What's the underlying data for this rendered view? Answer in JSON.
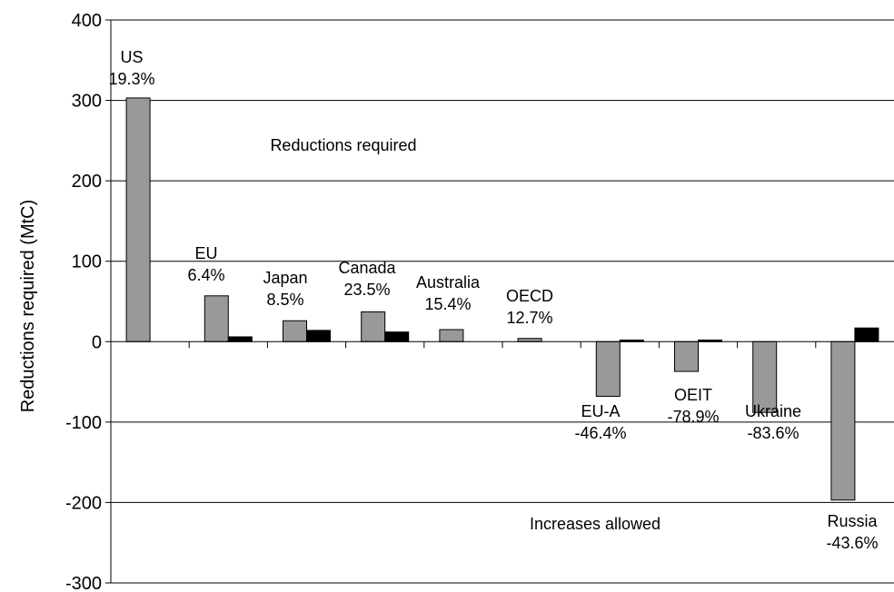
{
  "chart_data": {
    "type": "bar",
    "ylabel": "Reductions required (MtC)",
    "ylim": [
      -300,
      400
    ],
    "yticks": [
      -300,
      -200,
      -100,
      0,
      100,
      200,
      300,
      400
    ],
    "grid": true,
    "categories": [
      {
        "name": "US",
        "pct": "19.3%"
      },
      {
        "name": "EU",
        "pct": "6.4%"
      },
      {
        "name": "Japan",
        "pct": "8.5%"
      },
      {
        "name": "Canada",
        "pct": "23.5%"
      },
      {
        "name": "Australia",
        "pct": "15.4%"
      },
      {
        "name": "OECD",
        "pct": "12.7%"
      },
      {
        "name": "EU-A",
        "pct": "-46.4%"
      },
      {
        "name": "OEIT",
        "pct": "-78.9%"
      },
      {
        "name": "Ukraine",
        "pct": "-83.6%"
      },
      {
        "name": "Russia",
        "pct": "-43.6%"
      }
    ],
    "series": [
      {
        "color": "#999999",
        "values": [
          303,
          57,
          26,
          37,
          15,
          4,
          -68,
          -37,
          -88,
          -197
        ]
      },
      {
        "color": "#000000",
        "values": [
          0,
          6,
          14,
          12,
          0,
          0,
          2,
          2,
          0,
          17
        ]
      }
    ],
    "annotations": [
      "Reductions required",
      "Increases allowed"
    ]
  }
}
